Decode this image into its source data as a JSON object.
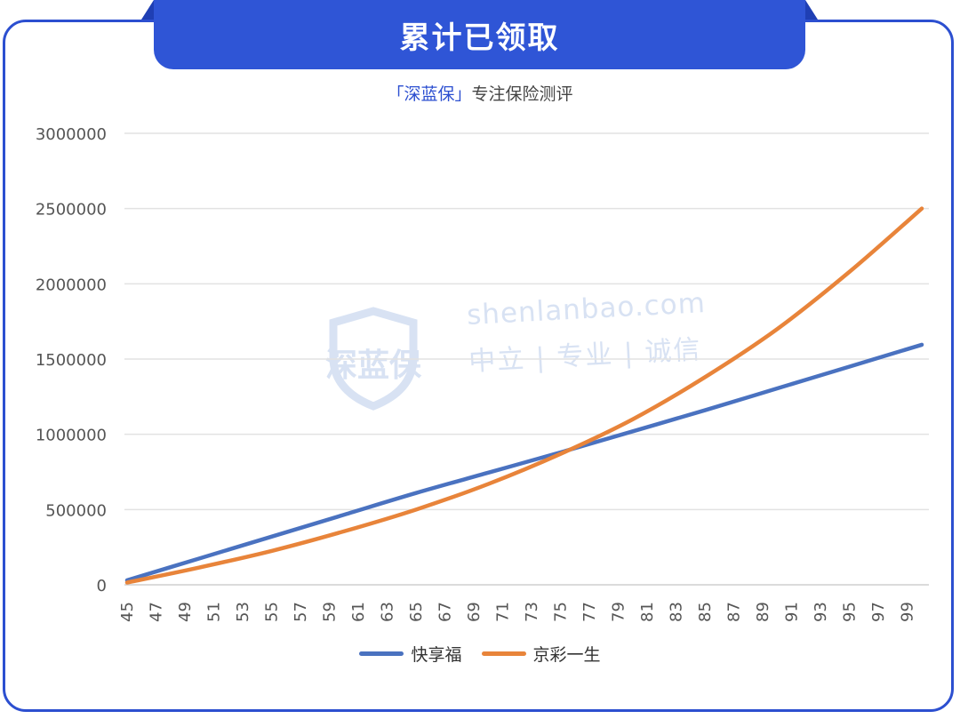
{
  "header": {
    "title": "累计已领取"
  },
  "subtitle": {
    "brand": "「深蓝保」",
    "text": "专注保险测评"
  },
  "watermark": {
    "badge_text": "深蓝保",
    "url": "shenlanbao.com",
    "slogan": "中立 | 专业 | 诚信"
  },
  "colors": {
    "accent": "#2f55d6",
    "series1": "#4a72c0",
    "series2": "#e8843a",
    "grid": "#e2e2e2"
  },
  "chart_data": {
    "type": "line",
    "title": "累计已领取",
    "xlabel": "",
    "ylabel": "",
    "x_ticks": [
      "45",
      "47",
      "49",
      "51",
      "53",
      "55",
      "57",
      "59",
      "61",
      "63",
      "65",
      "67",
      "69",
      "71",
      "73",
      "75",
      "77",
      "79",
      "81",
      "83",
      "85",
      "87",
      "89",
      "91",
      "93",
      "95",
      "97",
      "99"
    ],
    "y_ticks": [
      "0",
      "500000",
      "1000000",
      "1500000",
      "2000000",
      "2500000",
      "3000000"
    ],
    "ylim": [
      0,
      3000000
    ],
    "xlim": [
      45,
      100
    ],
    "grid": true,
    "legend_position": "bottom",
    "series": [
      {
        "name": "快享福",
        "color": "#4a72c0",
        "points": [
          [
            45,
            30000
          ],
          [
            50,
            175000
          ],
          [
            55,
            320000
          ],
          [
            60,
            465000
          ],
          [
            65,
            610000
          ],
          [
            70,
            745000
          ],
          [
            75,
            880000
          ],
          [
            80,
            1020000
          ],
          [
            85,
            1160000
          ],
          [
            90,
            1305000
          ],
          [
            95,
            1450000
          ],
          [
            100,
            1595000
          ]
        ]
      },
      {
        "name": "京彩一生",
        "color": "#e8843a",
        "points": [
          [
            45,
            15000
          ],
          [
            50,
            115000
          ],
          [
            55,
            225000
          ],
          [
            60,
            355000
          ],
          [
            65,
            500000
          ],
          [
            70,
            670000
          ],
          [
            75,
            870000
          ],
          [
            80,
            1100000
          ],
          [
            85,
            1380000
          ],
          [
            90,
            1700000
          ],
          [
            95,
            2080000
          ],
          [
            100,
            2500000
          ]
        ]
      }
    ]
  }
}
